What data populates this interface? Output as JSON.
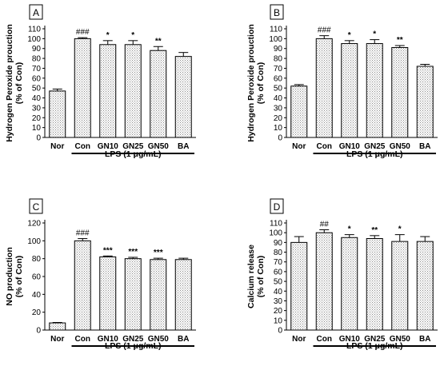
{
  "chart_data": [
    {
      "panel": "A",
      "type": "bar",
      "ylabel": [
        "Hydrogen Peroxide prouction",
        "(% of Con)"
      ],
      "ylim": [
        0,
        110
      ],
      "yticks": [
        0,
        10,
        20,
        30,
        40,
        50,
        60,
        70,
        80,
        90,
        100,
        110
      ],
      "categories": [
        "Nor",
        "Con",
        "GN10",
        "GN25",
        "GN50",
        "BA"
      ],
      "values": [
        47,
        100,
        94,
        94,
        88,
        82
      ],
      "errors": [
        2,
        1,
        4,
        4,
        4,
        4
      ],
      "significance": [
        "",
        "###",
        "*",
        "*",
        "**",
        ""
      ],
      "group_label": "LPS (1 μg/mL)"
    },
    {
      "panel": "B",
      "type": "bar",
      "ylabel": [
        "Hydrogen Peroxide prouction",
        "(% of Con)"
      ],
      "ylim": [
        0,
        110
      ],
      "yticks": [
        0,
        10,
        20,
        30,
        40,
        50,
        60,
        70,
        80,
        90,
        100,
        110
      ],
      "categories": [
        "Nor",
        "Con",
        "GN10",
        "GN25",
        "GN50",
        "BA"
      ],
      "values": [
        52,
        100,
        95,
        95,
        91,
        72
      ],
      "errors": [
        1.5,
        3,
        3,
        4,
        2,
        2
      ],
      "significance": [
        "",
        "###",
        "*",
        "*",
        "**",
        ""
      ],
      "group_label": "LPS (1 μg/mL)"
    },
    {
      "panel": "C",
      "type": "bar",
      "ylabel": [
        "NO production",
        "(% of Con)"
      ],
      "ylim": [
        0,
        120
      ],
      "yticks": [
        0,
        20,
        40,
        60,
        80,
        100,
        120
      ],
      "categories": [
        "Nor",
        "Con",
        "GN10",
        "GN25",
        "GN50",
        "BA"
      ],
      "values": [
        8,
        100,
        82,
        80,
        79,
        79
      ],
      "errors": [
        0.5,
        2.5,
        1,
        1.5,
        1.5,
        1.5
      ],
      "significance": [
        "",
        "###",
        "***",
        "***",
        "***",
        ""
      ],
      "group_label": "LPS (1 μg/mL)"
    },
    {
      "panel": "D",
      "type": "bar",
      "ylabel": [
        "Calcium release",
        "(% of Con)"
      ],
      "ylim": [
        0,
        110
      ],
      "yticks": [
        0,
        10,
        20,
        30,
        40,
        50,
        60,
        70,
        80,
        90,
        100,
        110
      ],
      "categories": [
        "Nor",
        "Con",
        "GN10",
        "GN25",
        "GN50",
        "BA"
      ],
      "values": [
        90,
        100,
        95,
        94,
        91,
        91
      ],
      "errors": [
        6,
        3,
        3,
        3,
        7,
        5
      ],
      "significance": [
        "",
        "##",
        "*",
        "**",
        "*",
        ""
      ],
      "group_label": "LPS (1 μg/mL)"
    }
  ]
}
